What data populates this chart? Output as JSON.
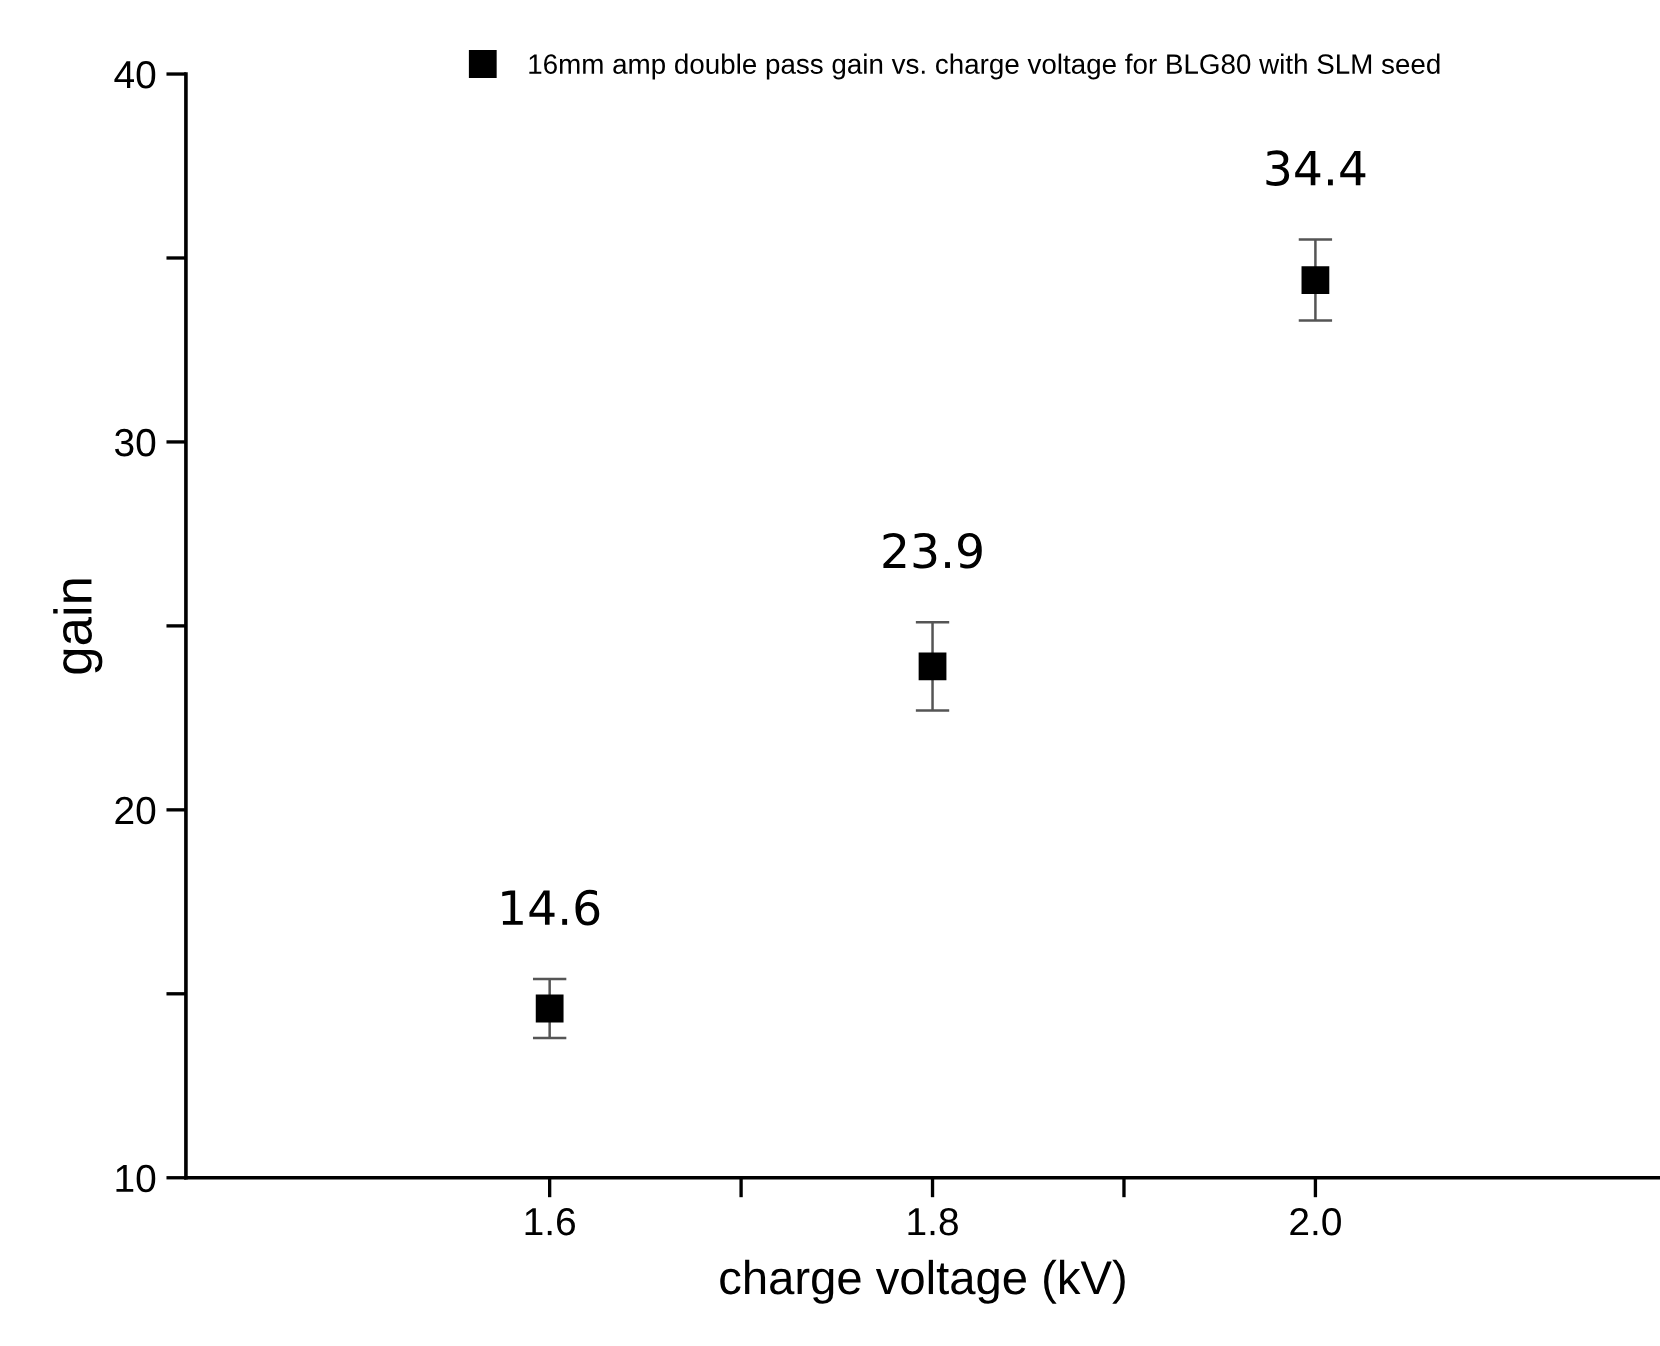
{
  "chart_data": {
    "type": "scatter",
    "xlabel": "charge voltage (kV)",
    "ylabel": "gain",
    "x": [
      1.6,
      1.8,
      2.0
    ],
    "series": [
      {
        "name": "16mm amp double pass gain vs. charge voltage for BLG80 with SLM seed",
        "color": "#000000",
        "values": [
          14.6,
          23.9,
          34.4
        ],
        "errors": [
          0.8,
          1.2,
          1.1
        ]
      }
    ],
    "xlim": [
      1.41,
      2.18
    ],
    "ylim": [
      10,
      40
    ],
    "xticks": [
      {
        "value": 1.6,
        "label": "1.6"
      },
      {
        "value": 1.7,
        "label": null
      },
      {
        "value": 1.8,
        "label": "1.8"
      },
      {
        "value": 1.9,
        "label": null
      },
      {
        "value": 2.0,
        "label": "2.0"
      }
    ],
    "yticks": [
      10,
      {
        "value": 15,
        "label": null
      },
      20,
      {
        "value": 25,
        "label": null
      },
      30,
      {
        "value": 35,
        "label": null
      },
      40
    ],
    "marker": "square",
    "data_labels": true,
    "legend": "top",
    "grid": false
  }
}
